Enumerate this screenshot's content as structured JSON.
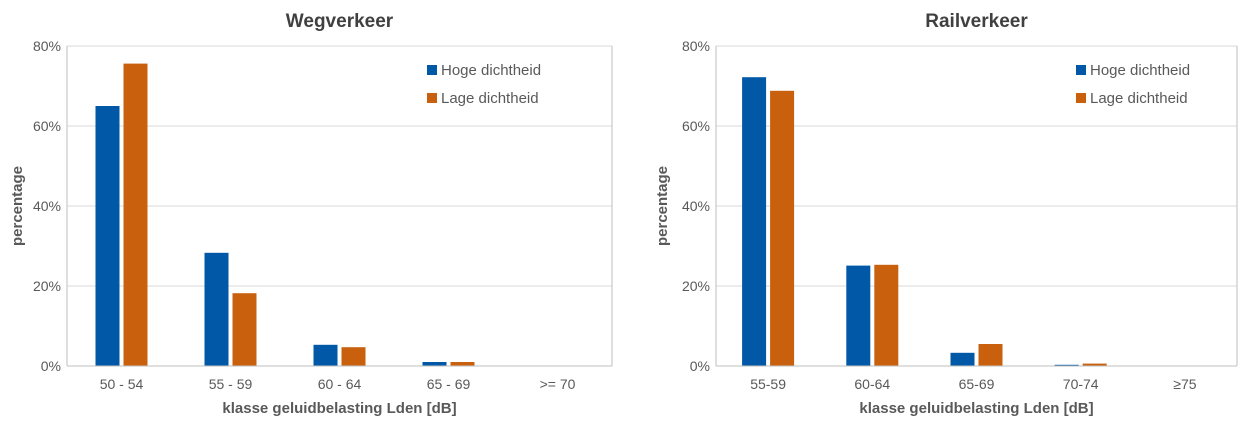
{
  "chart_data": [
    {
      "type": "bar",
      "title": "Wegverkeer",
      "xlabel": "klasse geluidbelasting Lden [dB]",
      "ylabel": "percentage",
      "categories": [
        "50 - 54",
        "55 - 59",
        "60 - 64",
        "65 - 69",
        ">= 70"
      ],
      "series": [
        {
          "name": "Hoge dichtheid",
          "values": [
            65,
            28.3,
            5.3,
            1.0,
            0
          ]
        },
        {
          "name": "Lage dichtheid",
          "values": [
            75.6,
            18.2,
            4.7,
            1.0,
            0
          ]
        }
      ],
      "ylim": [
        0,
        80
      ],
      "yticks": [
        "0%",
        "20%",
        "40%",
        "60%",
        "80%"
      ],
      "grid": true,
      "legend": "top-right"
    },
    {
      "type": "bar",
      "title": "Railverkeer",
      "xlabel": "klasse geluidbelasting Lden [dB]",
      "ylabel": "percentage",
      "categories": [
        "55-59",
        "60-64",
        "65-69",
        "70-74",
        "≥75"
      ],
      "series": [
        {
          "name": "Hoge dichtheid",
          "values": [
            72.2,
            25.1,
            3.3,
            0.3,
            0
          ]
        },
        {
          "name": "Lage dichtheid",
          "values": [
            68.8,
            25.3,
            5.5,
            0.6,
            0
          ]
        }
      ],
      "ylim": [
        0,
        80
      ],
      "yticks": [
        "0%",
        "20%",
        "40%",
        "60%",
        "80%"
      ],
      "grid": true,
      "legend": "top-right"
    }
  ],
  "colors": {
    "series": [
      "#0058A6",
      "#C8600E"
    ],
    "grid": "#D9D9D9",
    "axis": "#BFBFBF",
    "tick_text": "#595959",
    "title_text": "#404040"
  }
}
